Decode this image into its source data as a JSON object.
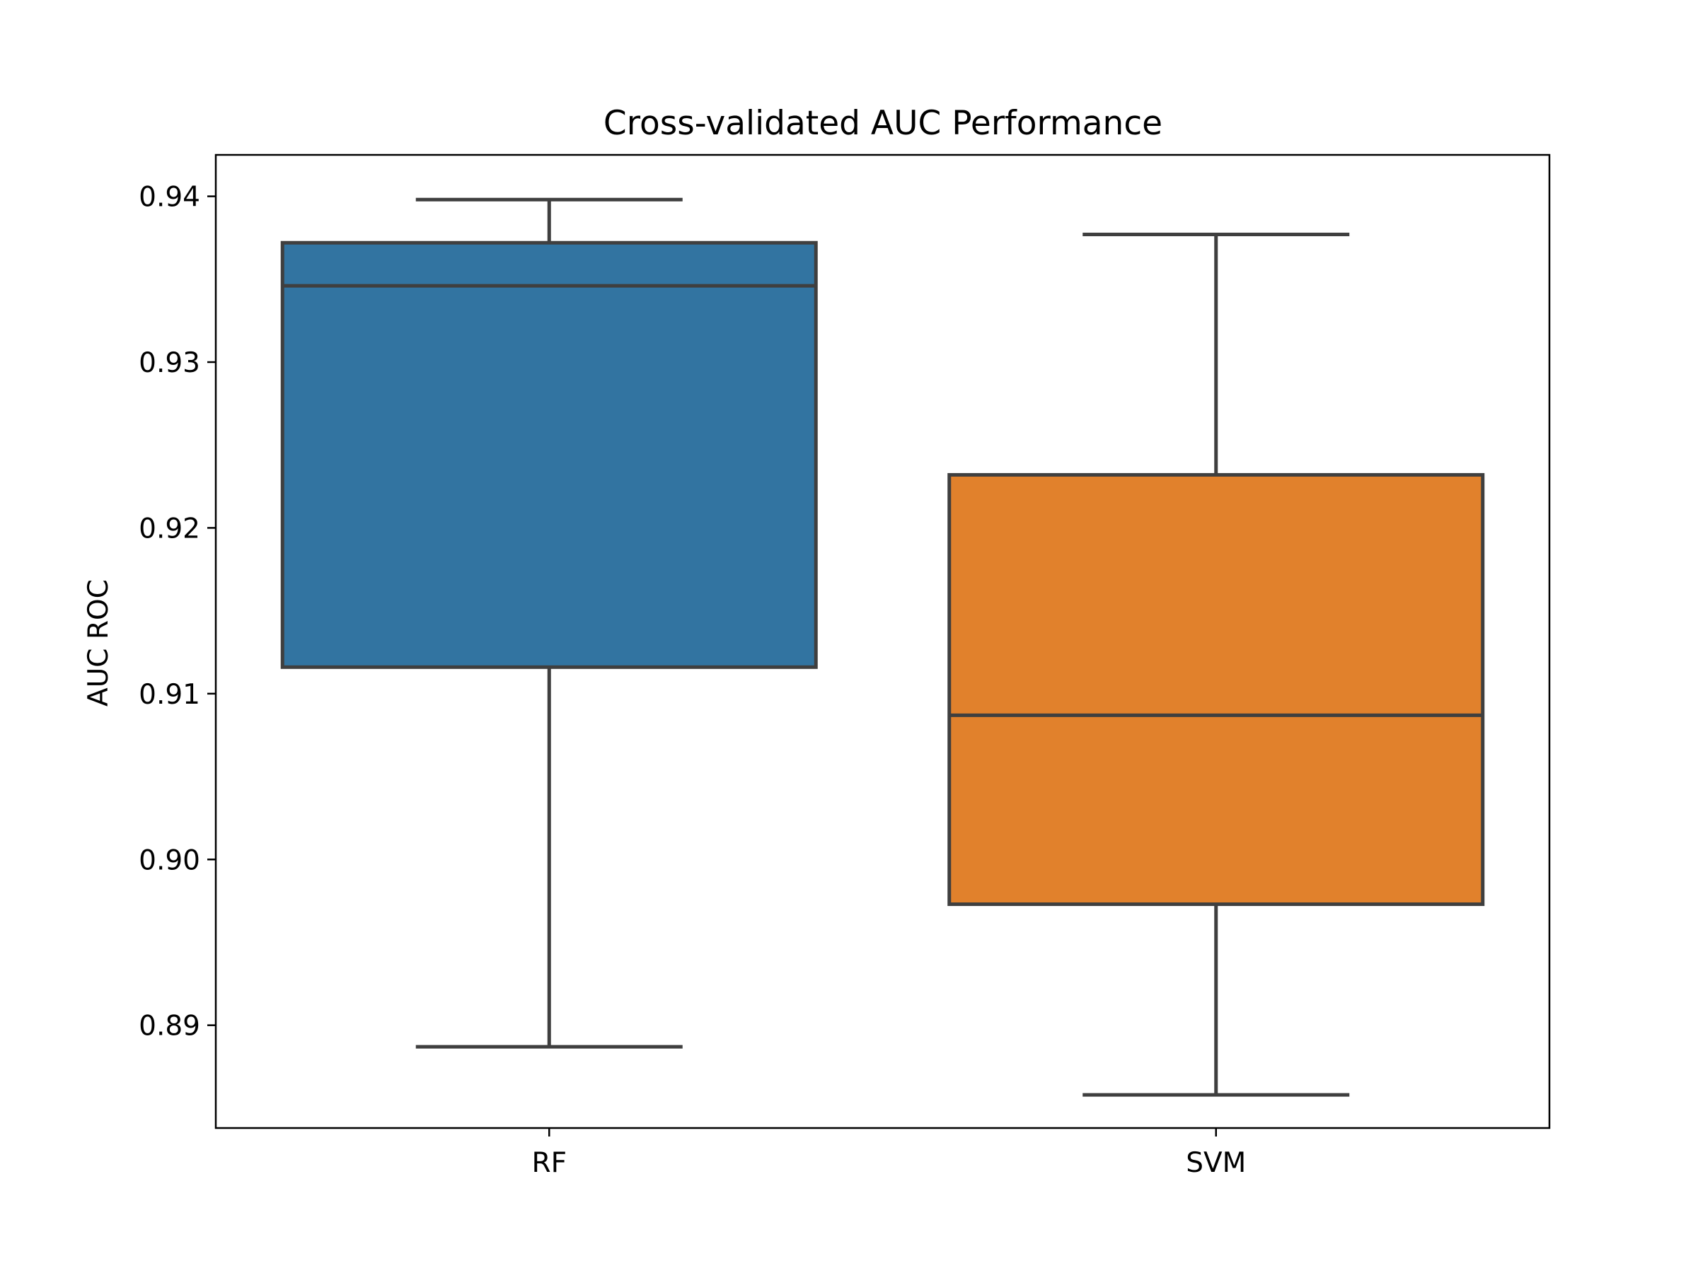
{
  "chart_data": {
    "type": "box",
    "title": "Cross-validated AUC Performance",
    "xlabel": "",
    "ylabel": "AUC ROC",
    "categories": [
      "RF",
      "SVM"
    ],
    "series": [
      {
        "category": "RF",
        "color": "#3274a1",
        "whisker_low": 0.8887,
        "q1": 0.9116,
        "median": 0.9346,
        "q3": 0.9372,
        "whisker_high": 0.9398
      },
      {
        "category": "SVM",
        "color": "#e1812c",
        "whisker_low": 0.8858,
        "q1": 0.8973,
        "median": 0.9087,
        "q3": 0.9232,
        "whisker_high": 0.9377
      }
    ],
    "yticks": [
      0.89,
      0.9,
      0.91,
      0.92,
      0.93,
      0.94
    ],
    "ytick_labels": [
      "0.89",
      "0.90",
      "0.91",
      "0.92",
      "0.93",
      "0.94"
    ],
    "ylim": [
      0.8838,
      0.9425
    ],
    "grid": false,
    "legend": "none",
    "line_color": "#3f3f3f"
  }
}
